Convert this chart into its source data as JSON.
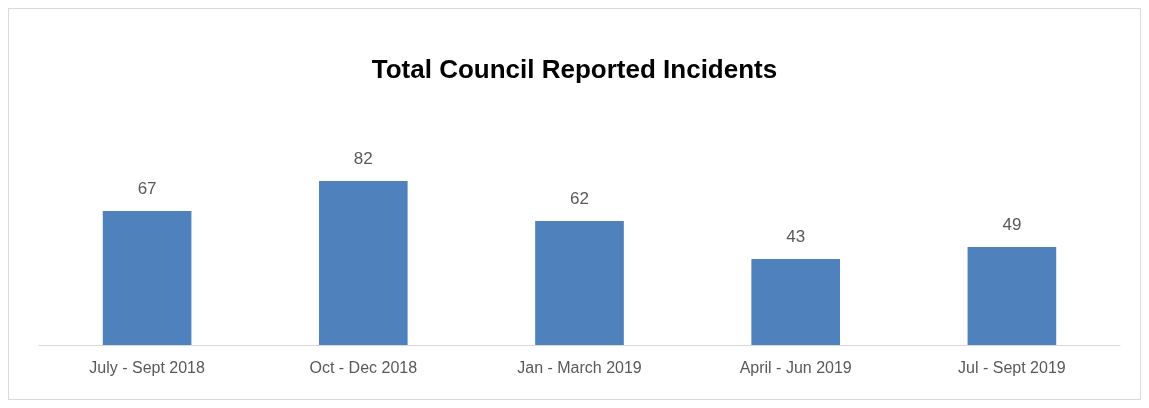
{
  "chart_data": {
    "type": "bar",
    "title": "Total Council Reported Incidents",
    "categories": [
      "July - Sept 2018",
      "Oct - Dec 2018",
      "Jan - March 2019",
      "April - Jun 2019",
      "Jul - Sept 2019"
    ],
    "values": [
      67,
      82,
      62,
      43,
      49
    ],
    "color": "#4f81bd",
    "data_labels": true
  }
}
